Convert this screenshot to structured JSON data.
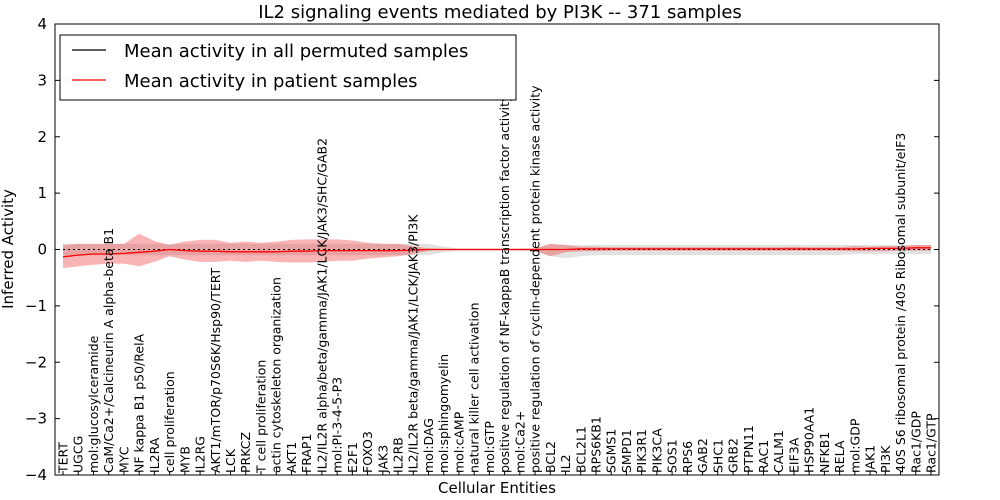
{
  "chart_data": {
    "type": "line",
    "title": "IL2 signaling events mediated by PI3K -- 371 samples",
    "xlabel": "Cellular Entities",
    "ylabel": "Inferred Activity",
    "ylim": [
      -4,
      4
    ],
    "yticks": [
      -4,
      -3,
      -2,
      -1,
      0,
      1,
      2,
      3,
      4
    ],
    "ytick_labels": [
      "−4",
      "−3",
      "−2",
      "−1",
      "0",
      "1",
      "2",
      "3",
      "4"
    ],
    "legend_position": "top-left",
    "categories": [
      "TERT",
      "UGCG",
      "mol:glucosylceramide",
      "CaM/Ca2+/Calcineurin A alpha-beta B1",
      "MYC",
      "NF kappa B1 p50/RelA",
      "IL2RA",
      "cell proliferation",
      "MYB",
      "IL2RG",
      "AKT1/mTOR/p70S6K/Hsp90/TERT",
      "LCK",
      "PRKCZ",
      "T cell proliferation",
      "actin cytoskeleton organization",
      "AKT1",
      "FRAP1",
      "IL2/IL2R alpha/beta/gamma/JAK1/LCK/JAK3/SHC/GAB2",
      "mol:PI-3-4-5-P3",
      "E2F1",
      "FOXO3",
      "JAK3",
      "IL2RB",
      "IL2/IL2R beta/gamma/JAK1/LCK/JAK3/PI3K",
      "mol:DAG",
      "mol:sphingomyelin",
      "mol:cAMP",
      "natural killer cell activation",
      "mol:GTP",
      "positive regulation of NF-kappaB transcription factor activity",
      "mol:Ca2+",
      "positive regulation of cyclin-dependent protein kinase activity",
      "BCL2",
      "IL2",
      "BCL2L1",
      "RPS6KB1",
      "SGMS1",
      "SMPD1",
      "PIK3R1",
      "PIK3CA",
      "SOS1",
      "RPS6",
      "GAB2",
      "SHC1",
      "GRB2",
      "PTPN11",
      "RAC1",
      "CALM1",
      "EIF3A",
      "HSP90AA1",
      "NFKB1",
      "RELA",
      "mol:GDP",
      "JAK1",
      "PI3K",
      "40S S6 ribosomal protein /40S Ribosomal subunit/eIF3",
      "Rac1/GDP",
      "Rac1/GTP"
    ],
    "series": [
      {
        "name": "Mean activity in all permuted samples",
        "color": "#000000",
        "values": [
          0,
          0,
          0,
          0,
          0,
          0,
          0,
          0,
          0,
          0,
          0,
          0,
          0,
          0,
          0,
          0,
          0,
          0,
          0,
          0,
          0,
          0,
          0,
          0,
          0,
          0,
          0,
          0,
          0,
          0,
          0,
          0,
          0,
          0,
          0,
          0,
          0,
          0,
          0,
          0,
          0,
          0,
          0,
          0,
          0,
          0,
          0,
          0,
          0,
          0,
          0,
          0,
          0,
          0,
          0,
          0,
          0,
          0
        ],
        "band_upper": [
          0.1,
          0.1,
          0.1,
          0.1,
          0.1,
          0.1,
          0.1,
          0.1,
          0.1,
          0.1,
          0.1,
          0.1,
          0.1,
          0.1,
          0.1,
          0.1,
          0.1,
          0.1,
          0.1,
          0.1,
          0.1,
          0.1,
          0.1,
          0.1,
          0.1,
          0.05,
          0.02,
          0.02,
          0.02,
          0.02,
          0.02,
          0.02,
          0.1,
          0.08,
          0.08,
          0.08,
          0.08,
          0.08,
          0.08,
          0.08,
          0.08,
          0.08,
          0.08,
          0.08,
          0.08,
          0.08,
          0.08,
          0.08,
          0.08,
          0.08,
          0.08,
          0.08,
          0.08,
          0.08,
          0.08,
          0.08,
          0.08,
          0.08
        ],
        "band_lower": [
          -0.1,
          -0.1,
          -0.1,
          -0.1,
          -0.1,
          -0.1,
          -0.1,
          -0.1,
          -0.1,
          -0.1,
          -0.1,
          -0.1,
          -0.1,
          -0.1,
          -0.1,
          -0.1,
          -0.1,
          -0.1,
          -0.1,
          -0.1,
          -0.1,
          -0.1,
          -0.1,
          -0.1,
          -0.1,
          -0.05,
          -0.02,
          -0.02,
          -0.02,
          -0.02,
          -0.02,
          -0.02,
          -0.12,
          -0.15,
          -0.12,
          -0.1,
          -0.1,
          -0.1,
          -0.1,
          -0.1,
          -0.1,
          -0.1,
          -0.1,
          -0.1,
          -0.1,
          -0.1,
          -0.1,
          -0.1,
          -0.1,
          -0.1,
          -0.1,
          -0.1,
          -0.08,
          -0.08,
          -0.08,
          -0.08,
          -0.08,
          -0.08
        ]
      },
      {
        "name": "Mean activity in patient samples",
        "color": "#ff0000",
        "values": [
          -0.13,
          -0.1,
          -0.08,
          -0.08,
          -0.07,
          -0.05,
          -0.03,
          0,
          -0.02,
          -0.03,
          -0.03,
          -0.04,
          -0.04,
          -0.04,
          -0.04,
          -0.03,
          -0.03,
          -0.02,
          -0.02,
          -0.02,
          -0.02,
          -0.02,
          -0.02,
          -0.01,
          0,
          0,
          0,
          0,
          0,
          0,
          0,
          0,
          0,
          0,
          0.01,
          0.01,
          0.01,
          0.01,
          0.01,
          0.01,
          0.01,
          0.01,
          0.01,
          0.01,
          0.01,
          0.01,
          0.01,
          0.01,
          0.01,
          0.01,
          0.01,
          0.01,
          0.01,
          0.02,
          0.02,
          0.02,
          0.03,
          0.03
        ],
        "band_upper": [
          0.08,
          0.1,
          0.1,
          0.1,
          0.1,
          0.28,
          0.15,
          0.08,
          0.14,
          0.17,
          0.17,
          0.12,
          0.14,
          0.12,
          0.14,
          0.17,
          0.18,
          0.18,
          0.18,
          0.16,
          0.12,
          0.1,
          0.1,
          0.06,
          0.02,
          0.01,
          0.01,
          0.01,
          0.01,
          0.01,
          0.01,
          0.02,
          0.1,
          0.08,
          0.05,
          0.05,
          0.04,
          0.04,
          0.04,
          0.04,
          0.04,
          0.04,
          0.04,
          0.04,
          0.04,
          0.04,
          0.04,
          0.04,
          0.05,
          0.04,
          0.04,
          0.04,
          0.06,
          0.05,
          0.06,
          0.06,
          0.08,
          0.08
        ],
        "band_lower": [
          -0.33,
          -0.3,
          -0.27,
          -0.25,
          -0.25,
          -0.3,
          -0.22,
          -0.12,
          -0.18,
          -0.22,
          -0.22,
          -0.2,
          -0.22,
          -0.2,
          -0.22,
          -0.23,
          -0.23,
          -0.22,
          -0.2,
          -0.2,
          -0.16,
          -0.14,
          -0.12,
          -0.08,
          -0.02,
          -0.01,
          -0.01,
          -0.01,
          -0.01,
          -0.01,
          -0.01,
          -0.02,
          -0.12,
          -0.05,
          -0.03,
          -0.03,
          -0.02,
          -0.02,
          -0.02,
          -0.02,
          -0.02,
          -0.02,
          -0.02,
          -0.02,
          -0.02,
          -0.02,
          -0.02,
          -0.02,
          -0.02,
          -0.02,
          -0.02,
          -0.02,
          -0.03,
          -0.03,
          -0.03,
          -0.02,
          -0.02,
          -0.02
        ]
      }
    ]
  }
}
